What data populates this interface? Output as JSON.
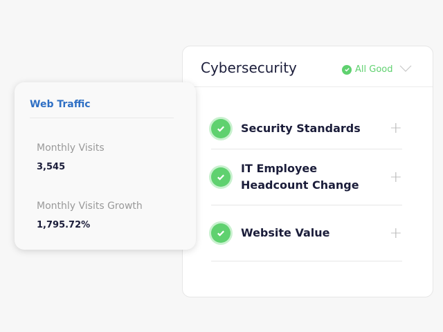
{
  "cybersecurity": {
    "title": "Cybersecurity",
    "status": "All Good",
    "status_color": "#5fd16f",
    "items": [
      {
        "label": "Security Standards",
        "icon": "check-circle-icon",
        "action": "plus-icon"
      },
      {
        "label": "IT Employee Headcount Change",
        "icon": "check-circle-icon",
        "action": "plus-icon"
      },
      {
        "label": "Website Value",
        "icon": "check-circle-icon",
        "action": "plus-icon"
      }
    ]
  },
  "web_traffic": {
    "title": "Web Traffic",
    "title_color": "#2e6fc4",
    "metrics": [
      {
        "label": "Monthly Visits",
        "value": "3,545"
      },
      {
        "label": "Monthly Visits Growth",
        "value": "1,795.72%"
      }
    ]
  }
}
